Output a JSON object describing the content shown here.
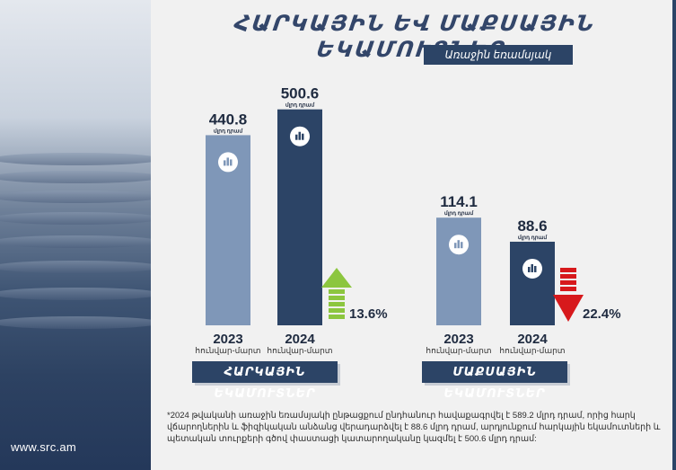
{
  "title": "ՀԱՐԿԱՅԻՆ ԵՎ ՄԱՔՍԱՅԻՆ ԵԿԱՄՈՒՏՆԵՐ",
  "period": "Առաջին եռամսյակ",
  "website": "www.src.am",
  "footnote": "*2024 թվականի առաջին եռամսյակի ընթացքում ընդհանուր հավաքագրվել է 589.2 մլրդ դրամ, որից հարկ վճարողներին և ֆիզիկական անձանց վերադարձվել է 88.6 մլրդ դրամ, արդյունքում հարկային եկամուտների և պետական տուրքերի գծով փաստացի կատարողականը կազմել է 500.6 մլրդ դրամ:",
  "colors": {
    "bar_2023": "#7f97b8",
    "bar_2024": "#2c4466",
    "increase": "#8cc63f",
    "decrease": "#d7191c",
    "label_bg": "#2c4466"
  },
  "chart_data": [
    {
      "type": "bar",
      "label": "ՀԱՐԿԱՅԻՆ ԵԿԱՄՈՒՏՆԵՐ",
      "categories": [
        "2023",
        "2024"
      ],
      "category_sub": [
        "հունվար-մարտ",
        "հունվար-մարտ"
      ],
      "values": [
        440.8,
        500.6
      ],
      "value_labels": [
        "440.8",
        "500.6"
      ],
      "unit": "մլրդ դրամ",
      "change": "13.6%",
      "change_direction": "up",
      "icon": "chart-icon"
    },
    {
      "type": "bar",
      "label": "ՄԱՔՍԱՅԻՆ ԵԿԱՄՈՒՏՆԵՐ",
      "categories": [
        "2023",
        "2024"
      ],
      "category_sub": [
        "հունվար-մարտ",
        "հունվար-մարտ"
      ],
      "values": [
        114.1,
        88.6
      ],
      "value_labels": [
        "114.1",
        "88.6"
      ],
      "unit": "մլրդ դրամ",
      "change": "22.4%",
      "change_direction": "down",
      "icon": "chart-icon"
    }
  ]
}
